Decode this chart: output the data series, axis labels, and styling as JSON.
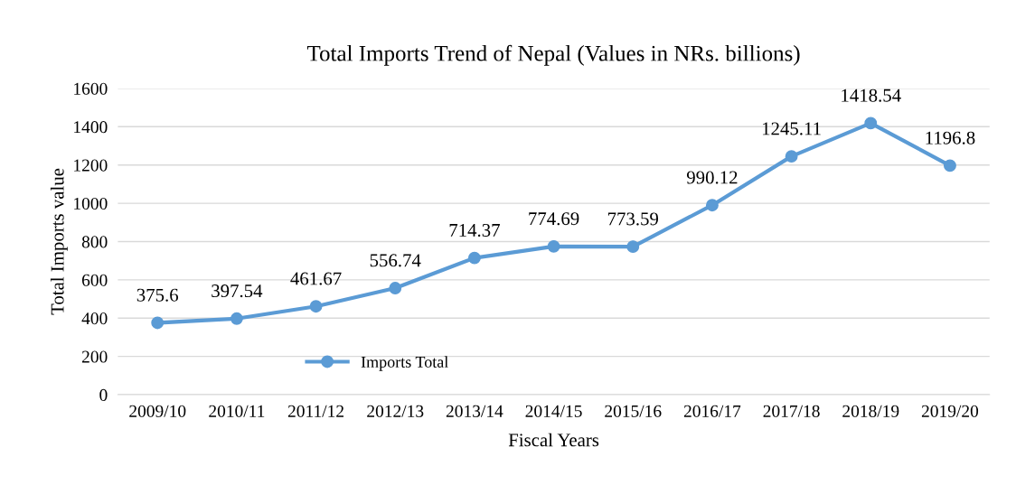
{
  "chart_data": {
    "type": "line",
    "title": "Total Imports Trend of Nepal (Values in NRs. billions)",
    "xlabel": "Fiscal Years",
    "ylabel": "Total Imports value",
    "categories": [
      "2009/10",
      "2010/11",
      "2011/12",
      "2012/13",
      "2013/14",
      "2014/15",
      "2015/16",
      "2016/17",
      "2017/18",
      "2018/19",
      "2019/20"
    ],
    "series": [
      {
        "name": "Imports Total",
        "color": "#5b9bd5",
        "values": [
          375.6,
          397.54,
          461.67,
          556.74,
          714.37,
          774.69,
          773.59,
          990.12,
          1245.11,
          1418.54,
          1196.8
        ]
      }
    ],
    "ylim": [
      0,
      1600
    ],
    "yticks": [
      0,
      200,
      400,
      600,
      800,
      1000,
      1200,
      1400,
      1600
    ],
    "grid": "y",
    "legend": "bottom left",
    "marker": "circle",
    "line_style": "solid",
    "data_labels": true
  }
}
